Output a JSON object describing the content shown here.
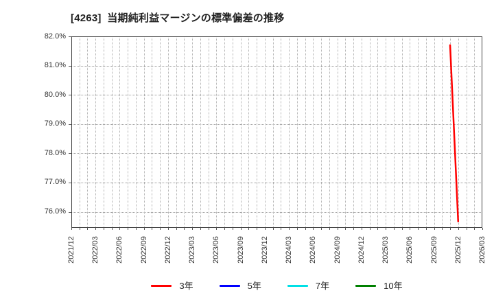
{
  "chart_data": {
    "type": "line",
    "title": "[4263]  当期純利益マージンの標準偏差の推移",
    "xlabel": "",
    "ylabel": "",
    "grid": true,
    "legend_position": "bottom-center",
    "ylim": [
      75.45,
      82.0
    ],
    "y_ticks": [
      82.0,
      81.0,
      80.0,
      79.0,
      78.0,
      77.0,
      76.0
    ],
    "y_tick_labels": [
      "82.0%",
      "81.0%",
      "80.0%",
      "79.0%",
      "78.0%",
      "77.0%",
      "76.0%"
    ],
    "x_start": "2021/12",
    "x_end": "2026/03",
    "x_minor_unit": "month",
    "x_labels": [
      "2021/12",
      "2022/03",
      "2022/06",
      "2022/09",
      "2022/12",
      "2023/03",
      "2023/06",
      "2023/09",
      "2023/12",
      "2024/03",
      "2024/06",
      "2024/09",
      "2024/12",
      "2025/03",
      "2025/06",
      "2025/09",
      "2025/12",
      "2026/03"
    ],
    "series": [
      {
        "name": "3年",
        "color": "#ff0000",
        "points": [
          [
            "2025/11",
            81.7
          ],
          [
            "2025/12",
            75.67
          ]
        ]
      },
      {
        "name": "5年",
        "color": "#0000ff",
        "points": []
      },
      {
        "name": "7年",
        "color": "#00e0e6",
        "points": []
      },
      {
        "name": "10年",
        "color": "#008000",
        "points": []
      }
    ]
  },
  "colors": {
    "background": "#ffffff",
    "plot_border": "#3f3f3f",
    "gridline": "#9a9a9a",
    "axis_text": "#333333",
    "title_text": "#222222"
  }
}
